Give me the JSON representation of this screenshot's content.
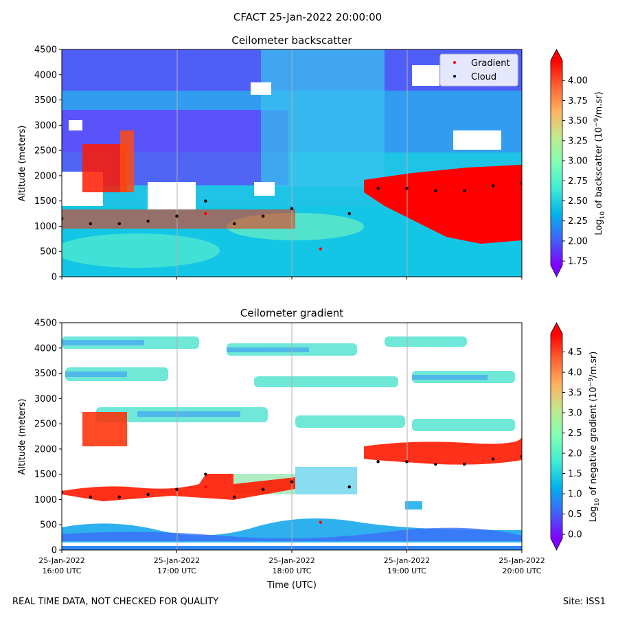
{
  "figure": {
    "title": "CFACT 25-Jan-2022 20:00:00",
    "footer_left": "REAL TIME DATA, NOT CHECKED FOR QUALITY",
    "footer_right": "Site: ISS1"
  },
  "colors": {
    "gradient_marker": "#ff0000",
    "cloud_marker": "#000000",
    "colormap": [
      "#8000ff",
      "#4062fa",
      "#01b3eb",
      "#40ecd4",
      "#80ffb4",
      "#c0eb8d",
      "#ffb360",
      "#ff6231",
      "#ff0000"
    ]
  },
  "chart_data": [
    {
      "type": "heatmap",
      "title": "Ceilometer backscatter",
      "ylabel": "Altitude (meters)",
      "ylim": [
        0,
        4500
      ],
      "yticks": [
        "0",
        "500",
        "1000",
        "1500",
        "2000",
        "2500",
        "3000",
        "3500",
        "4000",
        "4500"
      ],
      "x_range": [
        "2022-01-25T16:00",
        "2022-01-25T20:00"
      ],
      "colorbar": {
        "label": "Log10 of backscatter (10^-9/m.sr)",
        "ticks": [
          "1.75",
          "2.00",
          "2.25",
          "2.50",
          "2.75",
          "3.00",
          "3.25",
          "3.50",
          "3.75",
          "4.00"
        ],
        "range": [
          1.7,
          4.25
        ]
      },
      "legend": {
        "placement": "top-right",
        "entries": [
          {
            "name": "Gradient",
            "color": "#ff0000"
          },
          {
            "name": "Cloud",
            "color": "#000000"
          }
        ]
      },
      "series": [
        {
          "name": "Gradient",
          "x_hours": [
            16.0,
            16.25,
            16.5,
            16.75,
            17.0,
            17.25,
            17.5,
            17.75,
            18.0,
            18.25,
            18.5,
            18.75,
            19.0,
            19.25,
            19.5,
            19.75,
            20.0
          ],
          "y": [
            1150,
            1050,
            1050,
            1100,
            1200,
            1250,
            1050,
            1200,
            1350,
            550,
            1250,
            1750,
            1750,
            1700,
            1700,
            1800,
            1850
          ]
        },
        {
          "name": "Cloud",
          "x_hours": [
            16.0,
            16.25,
            16.5,
            16.75,
            17.0,
            17.25,
            17.5,
            17.75,
            18.0,
            18.5,
            18.75,
            19.0,
            19.25,
            19.5,
            19.75,
            20.0
          ],
          "y": [
            1150,
            1050,
            1050,
            1100,
            1200,
            1500,
            1050,
            1200,
            1350,
            1250,
            1750,
            1750,
            1700,
            1700,
            1800,
            1850
          ]
        }
      ]
    },
    {
      "type": "heatmap",
      "title": "Ceilometer gradient",
      "xlabel": "Time (UTC)",
      "ylabel": "Altitude (meters)",
      "ylim": [
        0,
        4500
      ],
      "yticks": [
        "0",
        "500",
        "1000",
        "1500",
        "2000",
        "2500",
        "3000",
        "3500",
        "4000",
        "4500"
      ],
      "xticks": [
        {
          "line1": "25-Jan-2022",
          "line2": "16:00 UTC"
        },
        {
          "line1": "25-Jan-2022",
          "line2": "17:00 UTC"
        },
        {
          "line1": "25-Jan-2022",
          "line2": "18:00 UTC"
        },
        {
          "line1": "25-Jan-2022",
          "line2": "19:00 UTC"
        },
        {
          "line1": "25-Jan-2022",
          "line2": "20:00 UTC"
        }
      ],
      "colorbar": {
        "label": "Log10 of negative gradient (10^-9/m.sr)",
        "ticks": [
          "0.0",
          "0.5",
          "1.0",
          "1.5",
          "2.0",
          "2.5",
          "3.0",
          "3.5",
          "4.0",
          "4.5"
        ],
        "range": [
          -0.1,
          4.95
        ]
      },
      "series": [
        {
          "name": "Gradient",
          "x_hours": [
            16.0,
            16.25,
            16.5,
            16.75,
            17.0,
            17.25,
            17.5,
            17.75,
            18.0,
            18.25,
            18.5,
            18.75,
            19.0,
            19.25,
            19.5,
            19.75,
            20.0
          ],
          "y": [
            1150,
            1050,
            1050,
            1100,
            1200,
            1250,
            1050,
            1200,
            1350,
            550,
            1250,
            1750,
            1750,
            1700,
            1700,
            1800,
            1850
          ]
        },
        {
          "name": "Cloud",
          "x_hours": [
            16.0,
            16.25,
            16.5,
            16.75,
            17.0,
            17.25,
            17.5,
            17.75,
            18.0,
            18.5,
            18.75,
            19.0,
            19.25,
            19.5,
            19.75,
            20.0
          ],
          "y": [
            1150,
            1050,
            1050,
            1100,
            1200,
            1500,
            1050,
            1200,
            1350,
            1250,
            1750,
            1750,
            1700,
            1700,
            1800,
            1850
          ]
        }
      ]
    }
  ]
}
